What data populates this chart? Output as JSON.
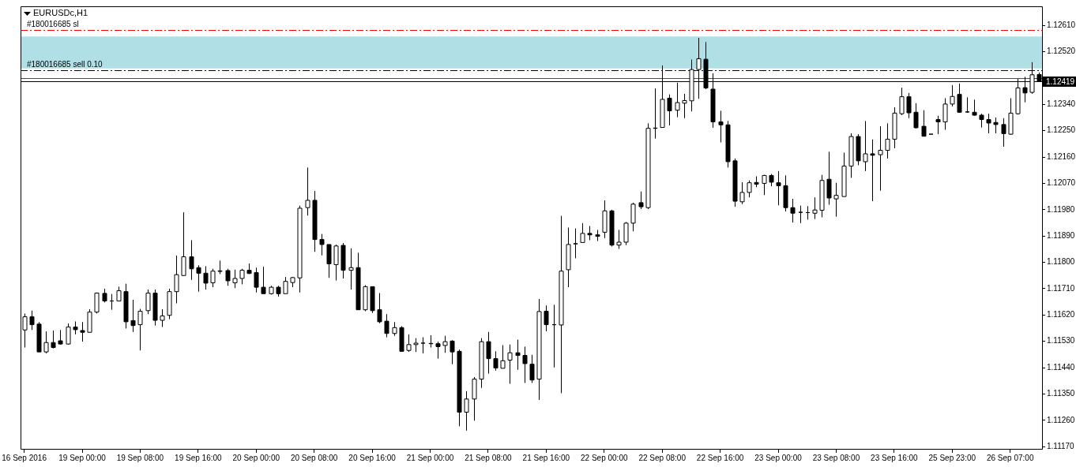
{
  "chart_data": {
    "type": "candlestick",
    "title": "EURUSDc,H1",
    "color": "#000000",
    "categories": [
      "16 Sep 2016",
      null,
      null,
      null,
      null,
      null,
      null,
      null,
      "19 Sep 00:00",
      null,
      null,
      null,
      null,
      null,
      null,
      null,
      "19 Sep 08:00",
      null,
      null,
      null,
      null,
      null,
      null,
      null,
      "19 Sep 16:00",
      null,
      null,
      null,
      null,
      null,
      null,
      null,
      "20 Sep 00:00",
      null,
      null,
      null,
      null,
      null,
      null,
      null,
      "20 Sep 08:00",
      null,
      null,
      null,
      null,
      null,
      null,
      null,
      "20 Sep 16:00",
      null,
      null,
      null,
      null,
      null,
      null,
      null,
      "21 Sep 00:00",
      null,
      null,
      null,
      null,
      null,
      null,
      null,
      "21 Sep 08:00",
      null,
      null,
      null,
      null,
      null,
      null,
      null,
      "21 Sep 16:00",
      null,
      null,
      null,
      null,
      null,
      null,
      null,
      "22 Sep 00:00",
      null,
      null,
      null,
      null,
      null,
      null,
      null,
      "22 Sep 08:00",
      null,
      null,
      null,
      null,
      null,
      null,
      null,
      "22 Sep 16:00",
      null,
      null,
      null,
      null,
      null,
      null,
      null,
      "23 Sep 00:00",
      null,
      null,
      null,
      null,
      null,
      null,
      null,
      "23 Sep 08:00",
      null,
      null,
      null,
      null,
      null,
      null,
      null,
      "23 Sep 16:00",
      null,
      null,
      null,
      null,
      null,
      null,
      null,
      "25 Sep 23:00",
      null,
      null,
      null,
      null,
      null,
      null,
      null,
      "26 Sep 07:00",
      null,
      null,
      null,
      null
    ],
    "ohlc": [
      [
        1.11569,
        1.11625,
        1.11509,
        1.11614
      ],
      [
        1.11614,
        1.11635,
        1.11569,
        1.11587
      ],
      [
        1.11589,
        1.11596,
        1.11494,
        1.11494
      ],
      [
        1.11494,
        1.11564,
        1.11489,
        1.11526
      ],
      [
        1.11526,
        1.11567,
        1.11506,
        1.11509
      ],
      [
        1.11532,
        1.11569,
        1.11519,
        1.11521
      ],
      [
        1.11521,
        1.11591,
        1.11519,
        1.11579
      ],
      [
        1.11579,
        1.11598,
        1.11554,
        1.1157
      ],
      [
        1.11567,
        1.11596,
        1.11529,
        1.11561
      ],
      [
        1.11561,
        1.1164,
        1.11561,
        1.1163
      ],
      [
        1.1163,
        1.11697,
        1.11625,
        1.11695
      ],
      [
        1.11694,
        1.1171,
        1.11663,
        1.11668
      ],
      [
        1.11668,
        1.11692,
        1.11638,
        1.11668
      ],
      [
        1.11668,
        1.11717,
        1.11668,
        1.11703
      ],
      [
        1.117,
        1.11727,
        1.11574,
        1.11597
      ],
      [
        1.11601,
        1.11672,
        1.11562,
        1.11584
      ],
      [
        1.11587,
        1.11641,
        1.11499,
        1.11633
      ],
      [
        1.11635,
        1.11707,
        1.11623,
        1.11695
      ],
      [
        1.11695,
        1.11707,
        1.11584,
        1.11602
      ],
      [
        1.11602,
        1.1164,
        1.11579,
        1.11617
      ],
      [
        1.11619,
        1.1171,
        1.11606,
        1.117
      ],
      [
        1.117,
        1.11823,
        1.1166,
        1.11758
      ],
      [
        1.11755,
        1.11971,
        1.11755,
        1.11819
      ],
      [
        1.11819,
        1.11876,
        1.1174,
        1.11778
      ],
      [
        1.11782,
        1.1179,
        1.117,
        1.11763
      ],
      [
        1.11763,
        1.11787,
        1.11707,
        1.11729
      ],
      [
        1.1173,
        1.11778,
        1.11715,
        1.1177
      ],
      [
        1.11769,
        1.11806,
        1.1176,
        1.11771
      ],
      [
        1.11772,
        1.11778,
        1.1172,
        1.11737
      ],
      [
        1.1173,
        1.11775,
        1.11712,
        1.11745
      ],
      [
        1.11745,
        1.11778,
        1.11725,
        1.11773
      ],
      [
        1.11773,
        1.11796,
        1.1176,
        1.11762
      ],
      [
        1.11765,
        1.11782,
        1.11697,
        1.11715
      ],
      [
        1.11715,
        1.11785,
        1.11693,
        1.11693
      ],
      [
        1.11693,
        1.1172,
        1.1169,
        1.11715
      ],
      [
        1.11715,
        1.1172,
        1.11683,
        1.11693
      ],
      [
        1.11693,
        1.1175,
        1.11693,
        1.11735
      ],
      [
        1.11731,
        1.1175,
        1.11715,
        1.11748
      ],
      [
        1.11747,
        1.11994,
        1.11697,
        1.11985
      ],
      [
        1.11987,
        1.12124,
        1.1196,
        1.12012
      ],
      [
        1.12012,
        1.12044,
        1.11836,
        1.11878
      ],
      [
        1.11878,
        1.11897,
        1.11824,
        1.11861
      ],
      [
        1.11861,
        1.11861,
        1.11747,
        1.11795
      ],
      [
        1.11792,
        1.11861,
        1.11738,
        1.11856
      ],
      [
        1.11858,
        1.11866,
        1.11745,
        1.11773
      ],
      [
        1.11773,
        1.11848,
        1.11707,
        1.11782
      ],
      [
        1.11782,
        1.11833,
        1.11638,
        1.11638
      ],
      [
        1.11638,
        1.11722,
        1.11633,
        1.11717
      ],
      [
        1.11717,
        1.11717,
        1.11627,
        1.11635
      ],
      [
        1.11638,
        1.11695,
        1.11592,
        1.11597
      ],
      [
        1.11599,
        1.11623,
        1.11544,
        1.11557
      ],
      [
        1.11557,
        1.11596,
        1.11549,
        1.11577
      ],
      [
        1.11577,
        1.11582,
        1.11496,
        1.11496
      ],
      [
        1.11499,
        1.11554,
        1.11494,
        1.11519
      ],
      [
        1.11519,
        1.11541,
        1.11494,
        1.11524
      ],
      [
        1.11524,
        1.11544,
        1.11489,
        1.11524
      ],
      [
        1.11523,
        1.11551,
        1.11509,
        1.11522
      ],
      [
        1.11522,
        1.11529,
        1.11471,
        1.11512
      ],
      [
        1.11516,
        1.11549,
        1.11491,
        1.11529
      ],
      [
        1.11531,
        1.11534,
        1.11452,
        1.11494
      ],
      [
        1.11496,
        1.11502,
        1.1124,
        1.11288
      ],
      [
        1.11288,
        1.1136,
        1.11225,
        1.11333
      ],
      [
        1.11333,
        1.11408,
        1.11259,
        1.11401
      ],
      [
        1.11401,
        1.11541,
        1.11371,
        1.11529
      ],
      [
        1.11529,
        1.11562,
        1.1142,
        1.11471
      ],
      [
        1.11471,
        1.11496,
        1.1143,
        1.11439
      ],
      [
        1.11438,
        1.11517,
        1.11438,
        1.11464
      ],
      [
        1.11466,
        1.11519,
        1.11385,
        1.11491
      ],
      [
        1.11491,
        1.11536,
        1.11433,
        1.11482
      ],
      [
        1.11482,
        1.11512,
        1.11388,
        1.11454
      ],
      [
        1.11452,
        1.11484,
        1.11388,
        1.11398
      ],
      [
        1.11401,
        1.11675,
        1.1133,
        1.11632
      ],
      [
        1.11633,
        1.11653,
        1.11564,
        1.11587
      ],
      [
        1.11587,
        1.11655,
        1.11441,
        1.11587
      ],
      [
        1.11586,
        1.11959,
        1.11353,
        1.1177
      ],
      [
        1.11775,
        1.11919,
        1.11715,
        1.11861
      ],
      [
        1.11863,
        1.11916,
        1.11814,
        1.11864
      ],
      [
        1.11868,
        1.11934,
        1.11868,
        1.11899
      ],
      [
        1.11899,
        1.11924,
        1.11876,
        1.11894
      ],
      [
        1.11894,
        1.11911,
        1.11873,
        1.11889
      ],
      [
        1.11903,
        1.12012,
        1.11883,
        1.11976
      ],
      [
        1.11976,
        1.1198,
        1.11854,
        1.11859
      ],
      [
        1.11859,
        1.11911,
        1.11846,
        1.11869
      ],
      [
        1.11869,
        1.11938,
        1.11859,
        1.11934
      ],
      [
        1.11934,
        1.12004,
        1.11906,
        1.11999
      ],
      [
        1.12004,
        1.12042,
        1.11982,
        1.1199
      ],
      [
        1.11987,
        1.12275,
        1.11982,
        1.12258
      ],
      [
        1.12258,
        1.12394,
        1.12223,
        1.12259
      ],
      [
        1.12261,
        1.12473,
        1.12261,
        1.12357
      ],
      [
        1.12361,
        1.12374,
        1.12268,
        1.12318
      ],
      [
        1.1232,
        1.12414,
        1.12296,
        1.12346
      ],
      [
        1.12344,
        1.12376,
        1.12293,
        1.12353
      ],
      [
        1.12352,
        1.12493,
        1.12316,
        1.12459
      ],
      [
        1.12459,
        1.12567,
        1.12359,
        1.12496
      ],
      [
        1.12494,
        1.12553,
        1.12392,
        1.12396
      ],
      [
        1.12392,
        1.12446,
        1.1226,
        1.1228
      ],
      [
        1.1228,
        1.12318,
        1.1221,
        1.1227
      ],
      [
        1.1227,
        1.12283,
        1.12124,
        1.12144
      ],
      [
        1.12147,
        1.12155,
        1.1199,
        1.12009
      ],
      [
        1.12007,
        1.12074,
        1.11999,
        1.12039
      ],
      [
        1.12039,
        1.1208,
        1.12022,
        1.12072
      ],
      [
        1.12073,
        1.12094,
        1.12057,
        1.12067
      ],
      [
        1.1207,
        1.12099,
        1.1203,
        1.12097
      ],
      [
        1.12097,
        1.12102,
        1.1206,
        1.12074
      ],
      [
        1.12072,
        1.12112,
        1.11995,
        1.12062
      ],
      [
        1.12062,
        1.12097,
        1.11974,
        1.11987
      ],
      [
        1.11987,
        1.12017,
        1.11936,
        1.11968
      ],
      [
        1.11971,
        1.11994,
        1.11934,
        1.11971
      ],
      [
        1.1197,
        1.11992,
        1.11946,
        1.1197
      ],
      [
        1.11968,
        1.12022,
        1.11948,
        1.11979
      ],
      [
        1.11978,
        1.12099,
        1.11954,
        1.1208
      ],
      [
        1.12084,
        1.12178,
        1.11997,
        1.1202
      ],
      [
        1.12017,
        1.12072,
        1.11956,
        1.12029
      ],
      [
        1.12025,
        1.12175,
        1.12025,
        1.12129
      ],
      [
        1.12129,
        1.12241,
        1.12089,
        1.1223
      ],
      [
        1.1223,
        1.12238,
        1.12132,
        1.12147
      ],
      [
        1.12144,
        1.12283,
        1.12112,
        1.12171
      ],
      [
        1.12171,
        1.1222,
        1.12009,
        1.12166
      ],
      [
        1.12168,
        1.12265,
        1.12045,
        1.12183
      ],
      [
        1.12183,
        1.12275,
        1.12155,
        1.12221
      ],
      [
        1.12221,
        1.1233,
        1.1219,
        1.1231
      ],
      [
        1.12308,
        1.12397,
        1.12303,
        1.12366
      ],
      [
        1.12366,
        1.12379,
        1.12293,
        1.12311
      ],
      [
        1.12313,
        1.12344,
        1.12258,
        1.1226
      ],
      [
        1.12265,
        1.1232,
        1.12231,
        1.12231
      ],
      [
        1.12238,
        1.12238,
        1.12238,
        1.12238
      ],
      [
        1.12288,
        1.12301,
        1.12238,
        1.1228
      ],
      [
        1.1228,
        1.12361,
        1.12253,
        1.12341
      ],
      [
        1.12341,
        1.12406,
        1.12333,
        1.12367
      ],
      [
        1.12374,
        1.12411,
        1.12311,
        1.12313
      ],
      [
        1.12314,
        1.12364,
        1.12311,
        1.12314
      ],
      [
        1.12313,
        1.12356,
        1.12301,
        1.12303
      ],
      [
        1.12303,
        1.12308,
        1.12261,
        1.12288
      ],
      [
        1.12288,
        1.12308,
        1.12241,
        1.12276
      ],
      [
        1.12278,
        1.12295,
        1.12241,
        1.12271
      ],
      [
        1.12271,
        1.12293,
        1.12195,
        1.1224
      ],
      [
        1.12238,
        1.12361,
        1.12236,
        1.1231
      ],
      [
        1.12308,
        1.12427,
        1.12305,
        1.12396
      ],
      [
        1.12397,
        1.12434,
        1.12347,
        1.12379
      ],
      [
        1.12381,
        1.12484,
        1.12376,
        1.12441
      ],
      [
        1.12442,
        1.12449,
        1.12417,
        1.12419
      ]
    ],
    "ylim": [
      1.1116,
      1.12675
    ],
    "yticks": [
      {
        "value": 1.1117,
        "label": "1.11170"
      },
      {
        "value": 1.1126,
        "label": "1.11260"
      },
      {
        "value": 1.1135,
        "label": "1.11350"
      },
      {
        "value": 1.1144,
        "label": "1.11440"
      },
      {
        "value": 1.1153,
        "label": "1.11530"
      },
      {
        "value": 1.1162,
        "label": "1.11620"
      },
      {
        "value": 1.1171,
        "label": "1.11710"
      },
      {
        "value": 1.118,
        "label": "1.11800"
      },
      {
        "value": 1.1189,
        "label": "1.11890"
      },
      {
        "value": 1.1198,
        "label": "1.11980"
      },
      {
        "value": 1.1207,
        "label": "1.12070"
      },
      {
        "value": 1.1216,
        "label": "1.12160"
      },
      {
        "value": 1.1225,
        "label": "1.12250"
      },
      {
        "value": 1.1234,
        "label": "1.12340"
      },
      {
        "value": 1.1252,
        "label": "1.12520"
      },
      {
        "value": 1.1261,
        "label": "1.12610"
      }
    ],
    "bands": [
      {
        "axis": "y",
        "from": 1.12463,
        "to": 1.12572,
        "color": "#b0e0e6"
      }
    ],
    "ref_lines": [
      {
        "axis": "y",
        "value": 1.12594,
        "label": "#180016685 sl",
        "color": "#ff0000",
        "line_style": "dashed"
      },
      {
        "axis": "y",
        "value": 1.12456,
        "label": "#180016685 sell 0.10",
        "color": "#000000",
        "line_style": "dashed"
      },
      {
        "axis": "y",
        "value": 1.1243,
        "color": "#ff0000",
        "line_style": "solid"
      },
      {
        "axis": "y",
        "value": 1.12419,
        "label": "1.12419",
        "color": "#000000",
        "line_style": "solid"
      }
    ]
  }
}
